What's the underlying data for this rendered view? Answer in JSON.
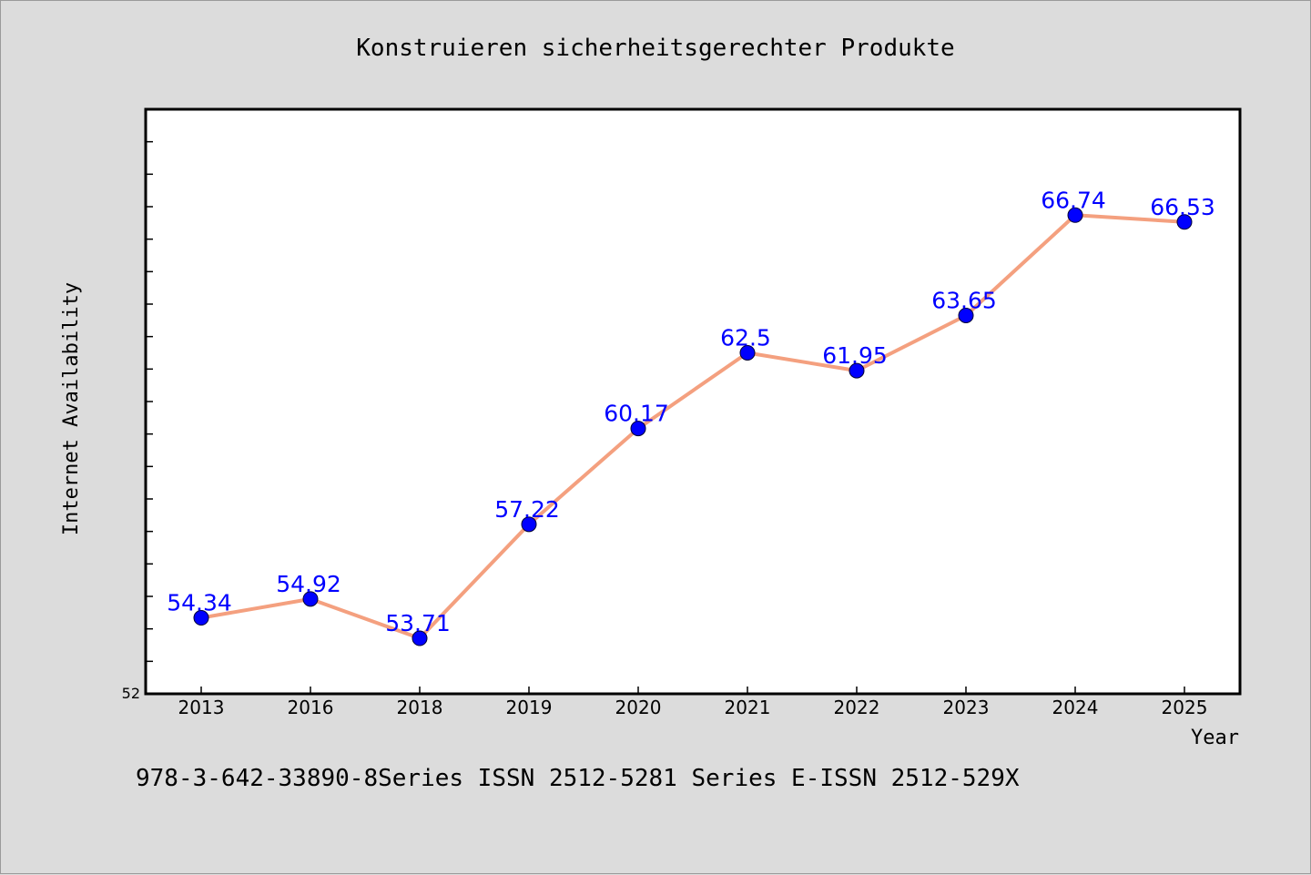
{
  "chart_data": {
    "type": "line",
    "title": "Konstruieren sicherheitsgerechter Produkte",
    "xlabel": "Year",
    "ylabel": "Internet Availability",
    "categories": [
      "2013",
      "2016",
      "2018",
      "2019",
      "2020",
      "2021",
      "2022",
      "2023",
      "2024",
      "2025"
    ],
    "values": [
      54.34,
      54.92,
      53.71,
      57.22,
      60.17,
      62.5,
      61.95,
      63.65,
      66.74,
      66.53
    ],
    "data_labels": [
      "54.34",
      "54.92",
      "53.71",
      "57.22",
      "60.17",
      "62.5",
      "61.95",
      "63.65",
      "66.74",
      "66.53"
    ],
    "y_tick_labels": [
      "52"
    ],
    "ylim": [
      52,
      70
    ],
    "grid": false,
    "colors": {
      "line": "#f4a07f",
      "marker": "#0000ff",
      "data_label": "#0000ff",
      "background": "#dcdcdc",
      "plot_background": "#ffffff"
    }
  },
  "footer": {
    "text": "978-3-642-33890-8Series ISSN 2512-5281 Series E-ISSN 2512-529X"
  }
}
